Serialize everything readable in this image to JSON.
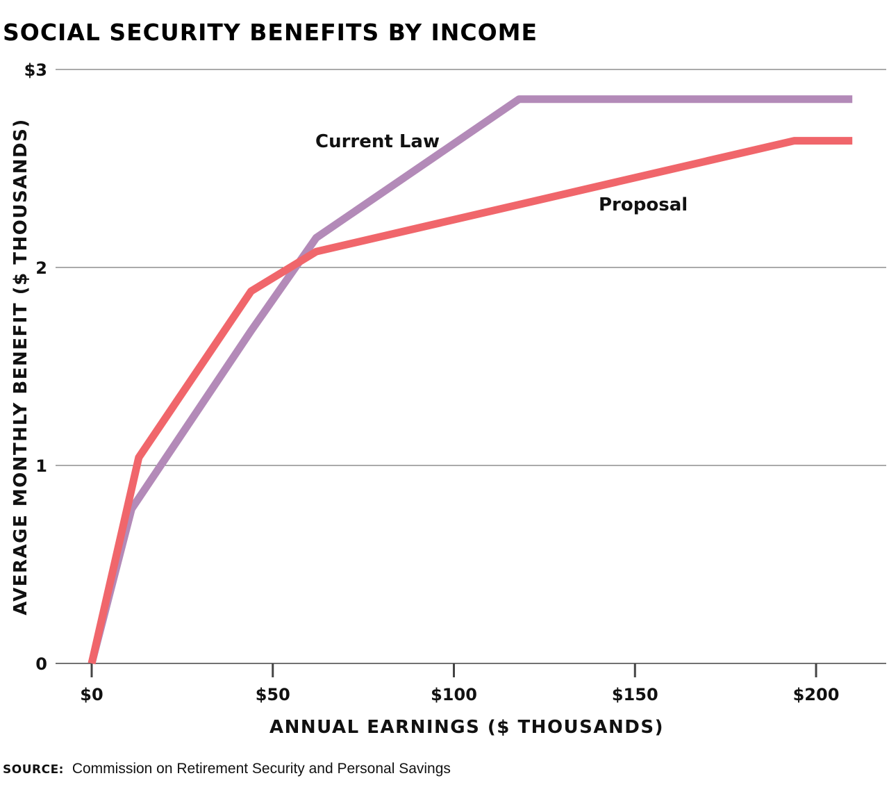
{
  "chart_data": {
    "type": "line",
    "title": "SOCIAL SECURITY BENEFITS BY INCOME",
    "xlabel": "ANNUAL EARNINGS ($ THOUSANDS)",
    "ylabel": "AVERAGE MONTHLY BENEFIT ($ THOUSANDS)",
    "xlim": [
      0,
      210
    ],
    "ylim": [
      0,
      3
    ],
    "x_ticks": [
      0,
      50,
      100,
      150,
      200
    ],
    "x_tick_labels": [
      "$0",
      "$50",
      "$100",
      "$150",
      "$200"
    ],
    "y_ticks": [
      0,
      1,
      2,
      3
    ],
    "y_tick_labels": [
      "0",
      "1",
      "2",
      "$3"
    ],
    "grid": "horizontal",
    "colors": {
      "current_law": "#b38ab8",
      "proposal": "#f0666b",
      "grid": "#555555"
    },
    "series": [
      {
        "name": "Current Law",
        "points": [
          [
            0,
            0
          ],
          [
            11,
            0.78
          ],
          [
            44,
            1.68
          ],
          [
            62,
            2.15
          ],
          [
            118,
            2.85
          ],
          [
            210,
            2.85
          ]
        ]
      },
      {
        "name": "Proposal",
        "points": [
          [
            0,
            0
          ],
          [
            13,
            1.04
          ],
          [
            44,
            1.88
          ],
          [
            62,
            2.08
          ],
          [
            194,
            2.64
          ],
          [
            210,
            2.64
          ]
        ]
      }
    ],
    "source_key": "SOURCE:",
    "source": "Commission on Retirement Security and Personal Savings"
  }
}
